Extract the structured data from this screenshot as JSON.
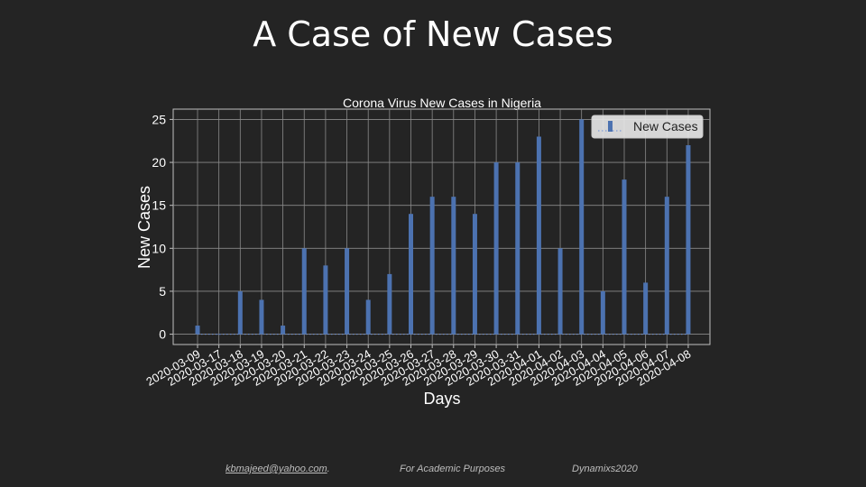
{
  "slide": {
    "title": "A Case of New Cases",
    "footer": {
      "email": "kbmajeed@yahoo.com",
      "email_suffix": ".",
      "note": "For Academic Purposes",
      "brand": "Dynamixs2020"
    }
  },
  "chart_data": {
    "type": "bar",
    "title": "Corona Virus New Cases in Nigeria",
    "xlabel": "Days",
    "ylabel": "New Cases",
    "ylim": [
      -1.2,
      26.2
    ],
    "yticks": [
      0,
      5,
      10,
      15,
      20,
      25
    ],
    "grid": true,
    "legend": "top-right",
    "bar_color": "#4c72b0",
    "baseline_color": "#6b8fd6",
    "categories": [
      "2020-03-09",
      "2020-03-17",
      "2020-03-18",
      "2020-03-19",
      "2020-03-20",
      "2020-03-21",
      "2020-03-22",
      "2020-03-23",
      "2020-03-24",
      "2020-03-25",
      "2020-03-26",
      "2020-03-27",
      "2020-03-28",
      "2020-03-29",
      "2020-03-30",
      "2020-03-31",
      "2020-04-01",
      "2020-04-02",
      "2020-04-03",
      "2020-04-04",
      "2020-04-05",
      "2020-04-06",
      "2020-04-07",
      "2020-04-08"
    ],
    "series": [
      {
        "name": "New Cases",
        "values": [
          1,
          0,
          5,
          4,
          1,
          10,
          8,
          10,
          4,
          7,
          14,
          16,
          16,
          14,
          20,
          20,
          23,
          10,
          25,
          5,
          18,
          6,
          16,
          22
        ]
      }
    ]
  }
}
